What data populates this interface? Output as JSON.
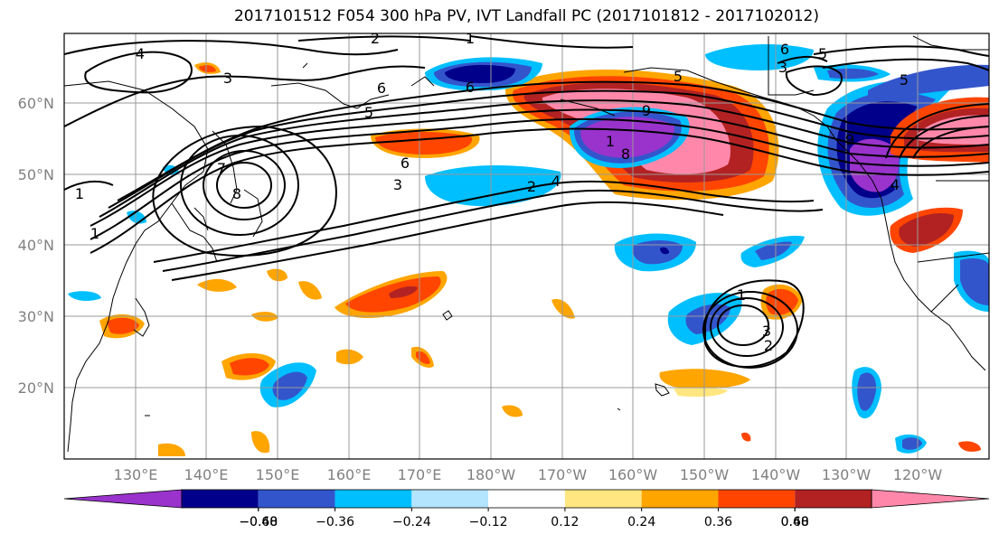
{
  "title": "2017101512 F054 300 hPa PV, IVT Landfall PC (2017101812 - 2017102012)",
  "lat_labels": [
    "60°N",
    "50°N",
    "40°N",
    "30°N",
    "20°N"
  ],
  "lon_labels": [
    "130°E",
    "140°E",
    "150°E",
    "160°E",
    "170°E",
    "180°W",
    "170°W",
    "160°W",
    "150°W",
    "140°W",
    "130°W",
    "120°W"
  ],
  "colorbar": {
    "levels": [
      "−0.60",
      "−0.48",
      "−0.36",
      "−0.24",
      "−0.12",
      "0.12",
      "0.24",
      "0.36",
      "0.48",
      "0.60"
    ],
    "colors": [
      "#9933cc",
      "#00008b",
      "#3355cc",
      "#00bfff",
      "#b3e5ff",
      "#ffffff",
      "#ffe680",
      "#ffa500",
      "#ff4500",
      "#b22222",
      "#ff88aa"
    ]
  },
  "contour_labels": [
    "4",
    "3",
    "2",
    "1",
    "1",
    "5",
    "6",
    "6",
    "3",
    "5",
    "5",
    "3",
    "2",
    "4",
    "8",
    "9",
    "6",
    "7",
    "8",
    "1",
    "1",
    "5",
    "6",
    "9",
    "1",
    "2",
    "3",
    "4"
  ]
}
